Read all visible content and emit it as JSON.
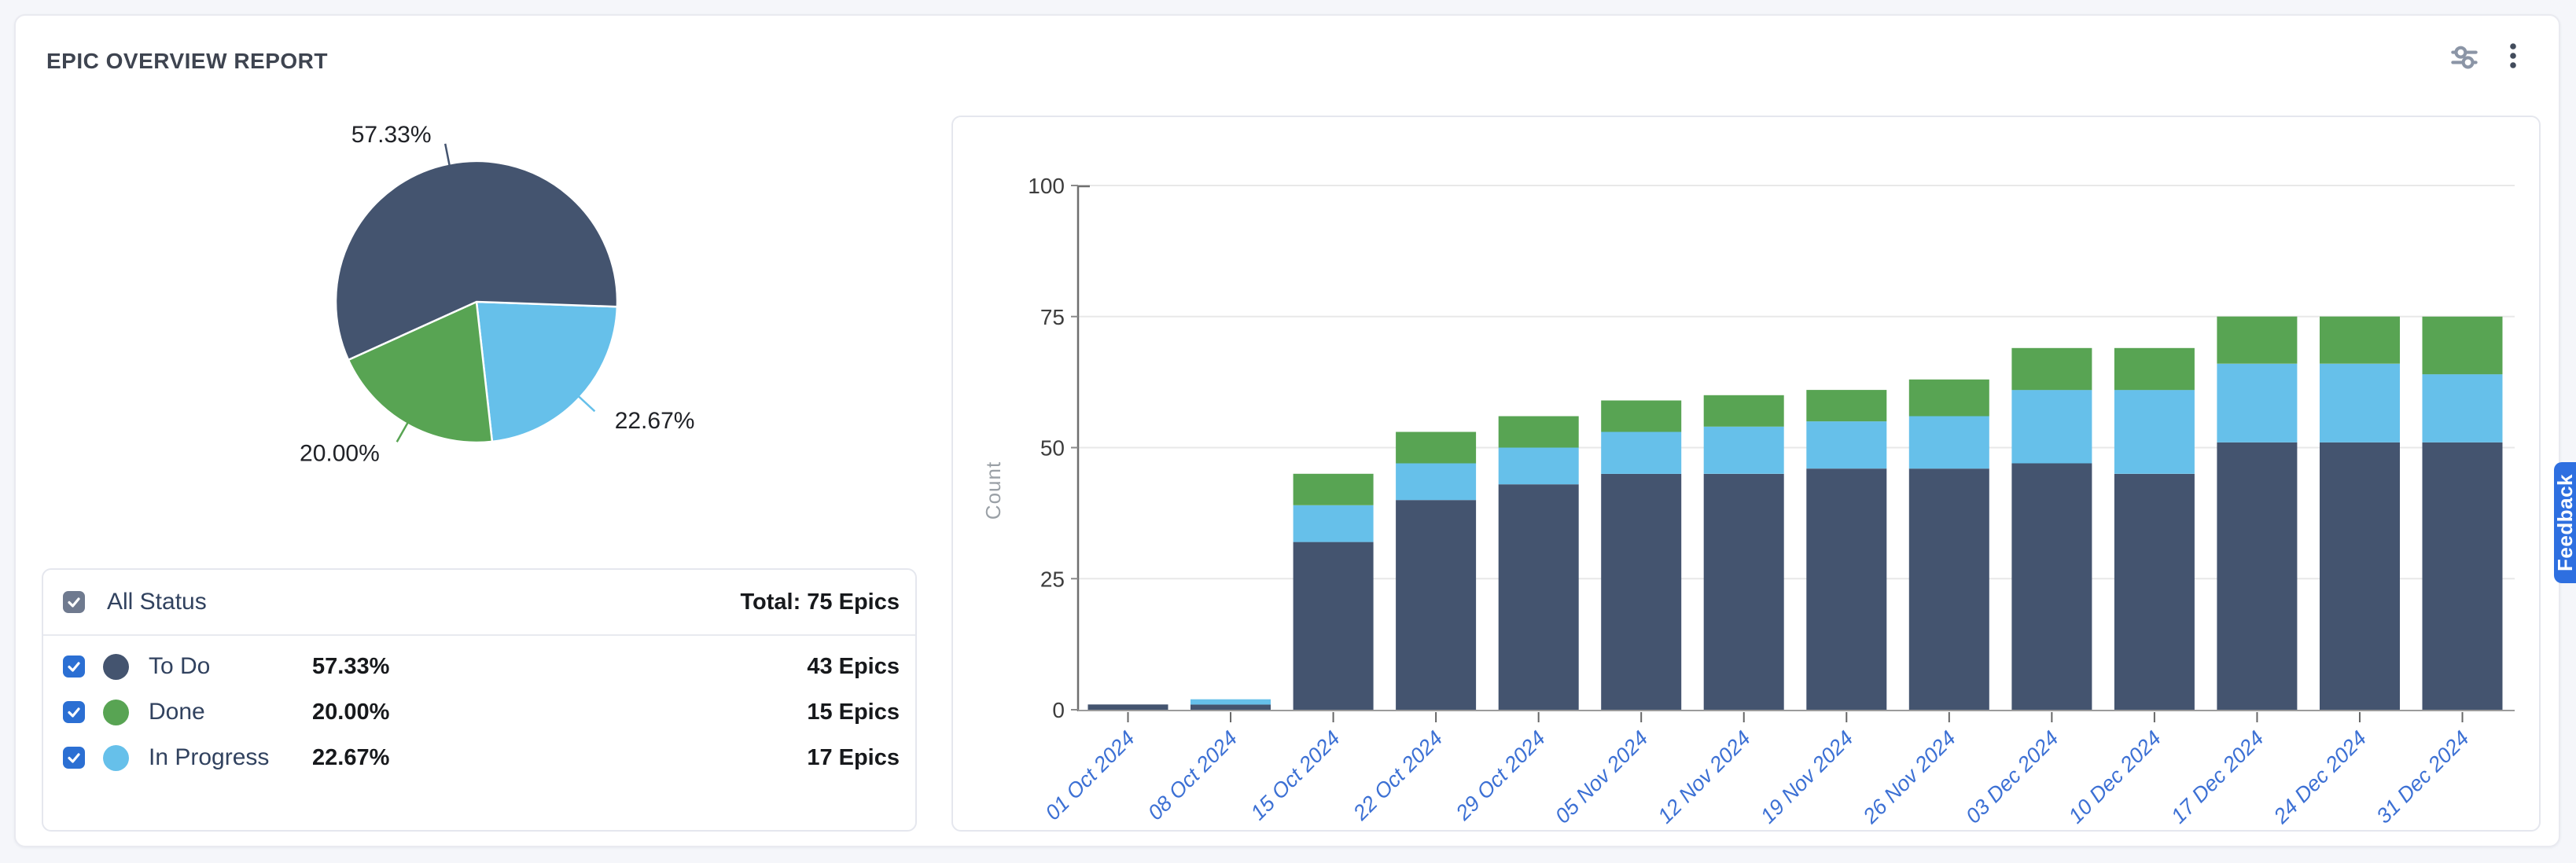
{
  "header": {
    "title": "EPIC OVERVIEW REPORT",
    "icons": [
      "sliders-icon",
      "kebab-menu-icon"
    ]
  },
  "feedback_label": "Feedback",
  "legend": {
    "all_label": "All Status",
    "total_label": "Total: 75 Epics",
    "rows": [
      {
        "label": "To Do",
        "percent": "57.33%",
        "count": "43 Epics",
        "color": "#44546F"
      },
      {
        "label": "Done",
        "percent": "20.00%",
        "count": "15 Epics",
        "color": "#58A453"
      },
      {
        "label": "In Progress",
        "percent": "22.67%",
        "count": "17 Epics",
        "color": "#66C0EA"
      }
    ]
  },
  "chart_data": [
    {
      "type": "pie",
      "title": "Epic status distribution",
      "slices": [
        {
          "label": "To Do",
          "pct": 57.33,
          "count": 43,
          "color": "#44546F"
        },
        {
          "label": "Done",
          "pct": 20.0,
          "count": 15,
          "color": "#58A453"
        },
        {
          "label": "In Progress",
          "pct": 22.67,
          "count": 17,
          "color": "#66C0EA"
        }
      ],
      "total": "75 Epics",
      "start_angle_deg": 92,
      "draw_order": [
        2,
        1,
        0
      ],
      "labels_shown": [
        "57.33%",
        "20.00%",
        "22.67%"
      ]
    },
    {
      "type": "bar",
      "stacked": true,
      "categories": [
        "01 Oct 2024",
        "08 Oct 2024",
        "15 Oct 2024",
        "22 Oct 2024",
        "29 Oct 2024",
        "05 Nov 2024",
        "12 Nov 2024",
        "19 Nov 2024",
        "26 Nov 2024",
        "03 Dec 2024",
        "10 Dec 2024",
        "17 Dec 2024",
        "24 Dec 2024",
        "31 Dec 2024"
      ],
      "series": [
        {
          "name": "To Do",
          "color": "#44546F",
          "values": [
            1,
            1,
            32,
            40,
            43,
            45,
            45,
            46,
            46,
            47,
            45,
            51,
            51,
            51
          ]
        },
        {
          "name": "In Progress",
          "color": "#66C0EA",
          "values": [
            0,
            1,
            7,
            7,
            7,
            8,
            9,
            9,
            10,
            14,
            16,
            15,
            15,
            13
          ]
        },
        {
          "name": "Done",
          "color": "#58A453",
          "values": [
            0,
            0,
            6,
            6,
            6,
            6,
            6,
            6,
            7,
            8,
            8,
            9,
            9,
            11
          ]
        }
      ],
      "totals": [
        1,
        2,
        45,
        53,
        56,
        59,
        60,
        61,
        63,
        69,
        69,
        75,
        75,
        75
      ],
      "xlabel": "",
      "ylabel": "Count",
      "ylim": [
        0,
        100
      ],
      "y_ticks": [
        0,
        25,
        50,
        75,
        100
      ],
      "grid": true,
      "legend_position": "none"
    }
  ]
}
